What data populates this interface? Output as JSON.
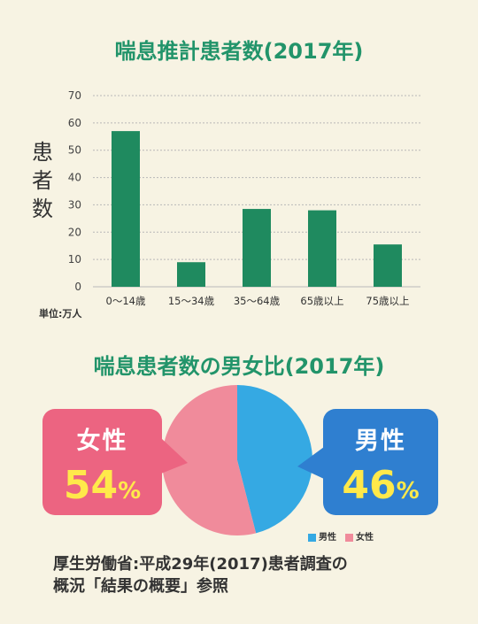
{
  "titles": {
    "bar": "喘息推計患者数(2017年)",
    "pie": "喘息患者数の男女比(2017年)"
  },
  "colors": {
    "title": "#22946a",
    "bar": "#1f8a5f",
    "male": "#35a9e3",
    "female": "#f08b9b",
    "female_box": "#ec6481",
    "male_box": "#2f7fd0",
    "percent": "#ffe94a"
  },
  "chart_data": [
    {
      "type": "bar",
      "title": "喘息推計患者数(2017年)",
      "categories": [
        "0〜14歳",
        "15〜34歳",
        "35〜64歳",
        "65歳以上",
        "75歳以上"
      ],
      "values": [
        57,
        9,
        28.5,
        28,
        15.5
      ],
      "ylabel": "患者数",
      "unit_label": "単位:万人",
      "yticks": [
        0,
        10,
        20,
        30,
        40,
        50,
        60,
        70
      ],
      "ylim": [
        0,
        70
      ],
      "grid": true
    },
    {
      "type": "pie",
      "title": "喘息患者数の男女比(2017年)",
      "slices": [
        {
          "label": "男性",
          "value": 46,
          "pct_text": "46"
        },
        {
          "label": "女性",
          "value": 54,
          "pct_text": "54"
        }
      ],
      "percent_sign": "%",
      "legend_position": "bottom-right"
    }
  ],
  "source": {
    "line1": "厚生労働省:平成29年(2017)患者調査の",
    "line2": "概況「結果の概要」参照"
  }
}
